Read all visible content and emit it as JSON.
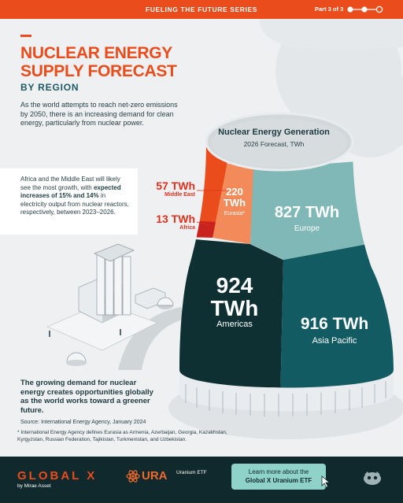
{
  "header": {
    "series": "FUELING THE FUTURE SERIES",
    "part": "Part 3 of 3",
    "progress_icon": "progress-dots-icon"
  },
  "title": {
    "line1": "NUCLEAR ENERGY",
    "line2": "SUPPLY FORECAST",
    "subtitle": "BY REGION"
  },
  "intro": "As the world attempts to reach net-zero emissions by 2050, there is an increasing demand for clean energy, particularly from nuclear power.",
  "callout": {
    "pre": "Africa and the Middle East will likely see the most growth, with ",
    "bold": "expected increases of 15% and 14%",
    "post": " in electricity output from nuclear reactors, respectively, between 2023–2026."
  },
  "chart": {
    "title": "Nuclear Energy Generation",
    "subtitle": "2026 Forecast, TWh",
    "regions": {
      "middle_east": {
        "value": "57 TWh",
        "name": "Middle East"
      },
      "africa": {
        "value": "13 TWh",
        "name": "Africa"
      },
      "eurasia": {
        "value_num": "220",
        "unit": "TWh",
        "name": "Eurasia*"
      },
      "europe": {
        "value": "827 TWh",
        "name": "Europe"
      },
      "americas": {
        "value_num": "924",
        "unit": "TWh",
        "name": "Americas"
      },
      "asia_pacific": {
        "value": "916 TWh",
        "name": "Asia Pacific"
      }
    },
    "colors": {
      "middle_east": "#ea4c1c",
      "africa": "#c8231f",
      "eurasia": "#f28a5a",
      "europe": "#7fb8b6",
      "americas": "#0f3033",
      "asia_pacific": "#135b63"
    }
  },
  "closing": "The growing demand for nuclear energy creates opportunities globally as the world works toward a greener future.",
  "source": "Source: International Energy Agency, January 2024",
  "footnote": "* International Energy Agency defines Eurasia as Armenia, Azerbaijan, Georgia, Kazakhstan, Kyrgyzstan, Russian Federation, Tajikistan, Turkmenistan, and Uzbekistan.",
  "footer": {
    "brand": "GLOBAL X",
    "brand_sub": "by Mirae Asset",
    "ticker": "URA",
    "ticker_sub": "Uranium ETF",
    "cta_line1": "Learn more about the",
    "cta_line2": "Global X Uranium ETF"
  }
}
